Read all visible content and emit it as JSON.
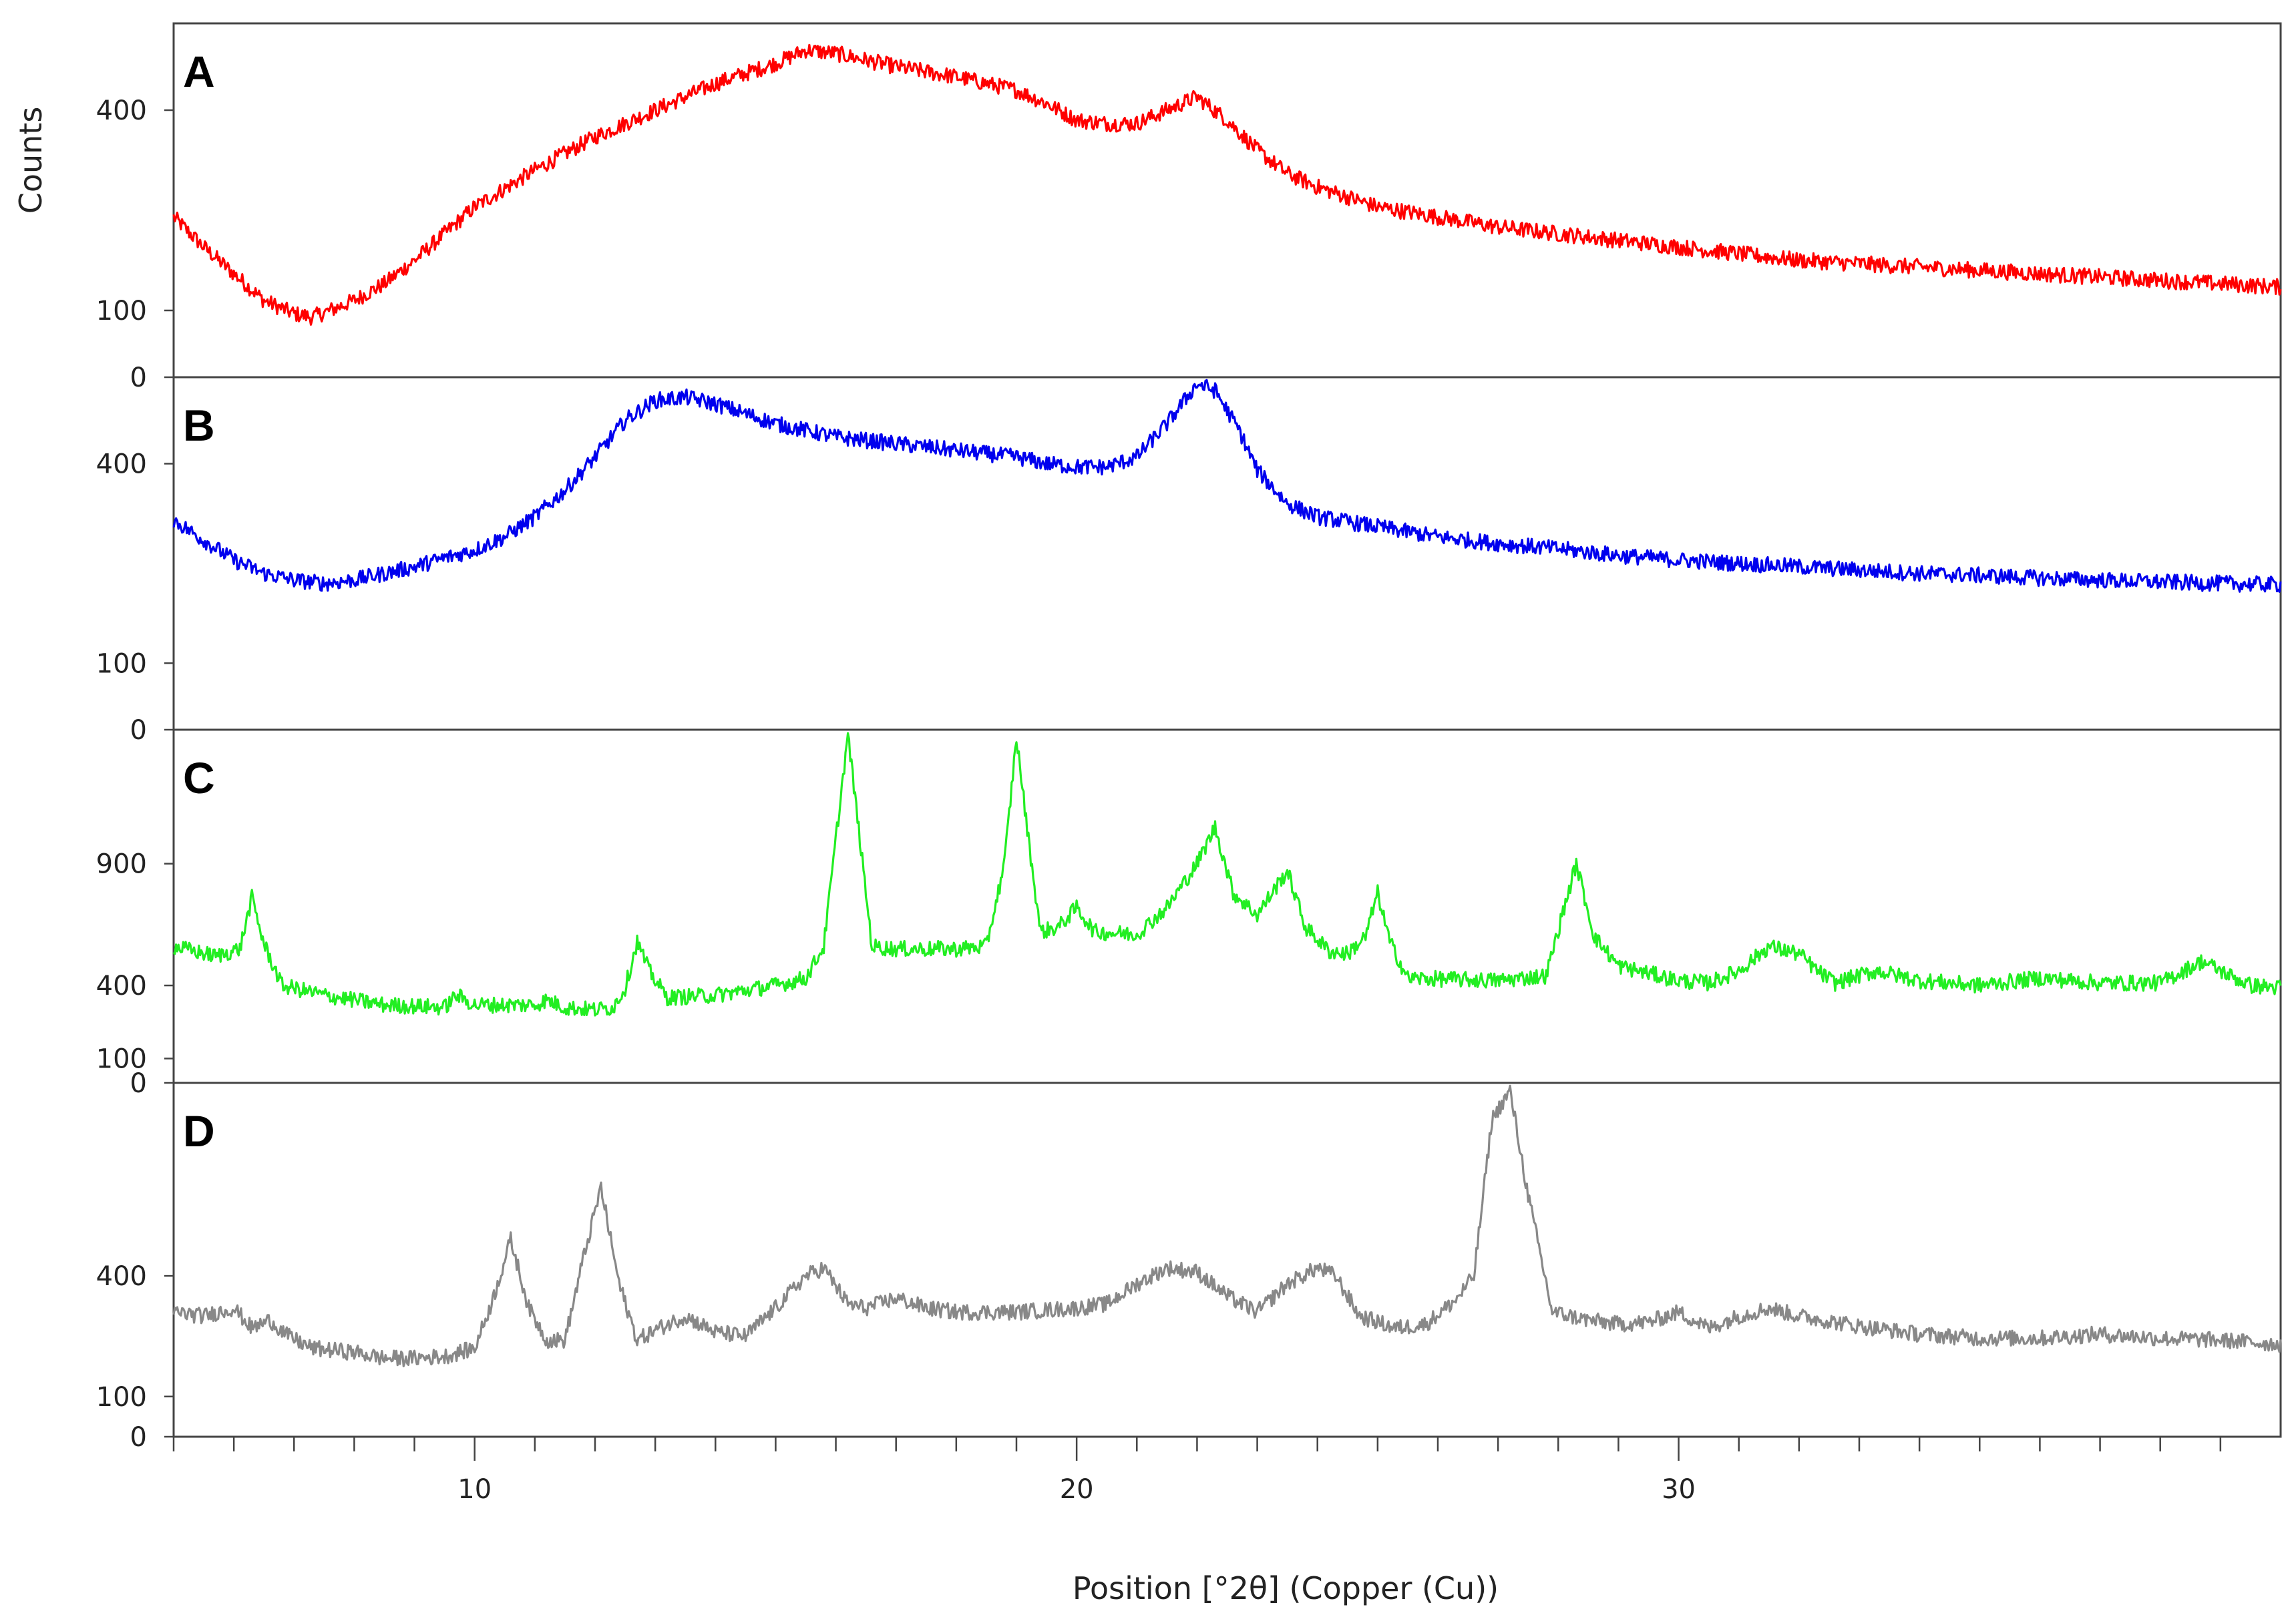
{
  "chart_data": {
    "type": "line",
    "xlabel": "Position [°2θ] (Copper (Cu))",
    "ylabel": "Counts",
    "xlim": [
      5,
      40
    ],
    "x_ticks": [
      10,
      20,
      30
    ],
    "panels": [
      {
        "label": "A",
        "color": "#ff0000",
        "y_ticks": [
          0,
          100,
          400
        ],
        "ylim": [
          0,
          530
        ],
        "points": [
          [
            5,
            240
          ],
          [
            5.5,
            195
          ],
          [
            6,
            155
          ],
          [
            6.5,
            115
          ],
          [
            7,
            95
          ],
          [
            7.3,
            90
          ],
          [
            7.6,
            100
          ],
          [
            8,
            115
          ],
          [
            8.5,
            140
          ],
          [
            9,
            175
          ],
          [
            9.5,
            215
          ],
          [
            10,
            255
          ],
          [
            11,
            310
          ],
          [
            12,
            360
          ],
          [
            13,
            400
          ],
          [
            14,
            440
          ],
          [
            15,
            470
          ],
          [
            15.5,
            490
          ],
          [
            16,
            485
          ],
          [
            16.5,
            475
          ],
          [
            17,
            465
          ],
          [
            18,
            450
          ],
          [
            19,
            430
          ],
          [
            19.5,
            410
          ],
          [
            20,
            385
          ],
          [
            20.5,
            380
          ],
          [
            21,
            380
          ],
          [
            21.5,
            400
          ],
          [
            22,
            420
          ],
          [
            22.5,
            385
          ],
          [
            23,
            340
          ],
          [
            23.5,
            305
          ],
          [
            24,
            285
          ],
          [
            24.5,
            270
          ],
          [
            25,
            255
          ],
          [
            26,
            240
          ],
          [
            27,
            225
          ],
          [
            28,
            215
          ],
          [
            29,
            205
          ],
          [
            30,
            195
          ],
          [
            31,
            185
          ],
          [
            32,
            175
          ],
          [
            33,
            170
          ],
          [
            34,
            165
          ],
          [
            35,
            160
          ],
          [
            36,
            155
          ],
          [
            37,
            150
          ],
          [
            38,
            145
          ],
          [
            39,
            140
          ],
          [
            40,
            135
          ]
        ]
      },
      {
        "label": "B",
        "color": "#0000ee",
        "y_ticks": [
          0,
          100,
          400
        ],
        "ylim": [
          0,
          530
        ],
        "points": [
          [
            5,
            315
          ],
          [
            5.5,
            285
          ],
          [
            6,
            255
          ],
          [
            6.5,
            235
          ],
          [
            7,
            225
          ],
          [
            7.5,
            220
          ],
          [
            8,
            225
          ],
          [
            8.5,
            235
          ],
          [
            9,
            245
          ],
          [
            9.5,
            258
          ],
          [
            10,
            270
          ],
          [
            10.5,
            290
          ],
          [
            11,
            320
          ],
          [
            11.5,
            360
          ],
          [
            12,
            410
          ],
          [
            12.5,
            465
          ],
          [
            13,
            495
          ],
          [
            13.5,
            500
          ],
          [
            14,
            490
          ],
          [
            14.5,
            475
          ],
          [
            15,
            460
          ],
          [
            15.5,
            450
          ],
          [
            16,
            440
          ],
          [
            16.5,
            435
          ],
          [
            17,
            430
          ],
          [
            18,
            420
          ],
          [
            19,
            410
          ],
          [
            19.5,
            400
          ],
          [
            20,
            395
          ],
          [
            20.5,
            395
          ],
          [
            21,
            410
          ],
          [
            21.5,
            460
          ],
          [
            22,
            520
          ],
          [
            22.3,
            510
          ],
          [
            22.7,
            450
          ],
          [
            23,
            390
          ],
          [
            23.5,
            340
          ],
          [
            24,
            320
          ],
          [
            25,
            305
          ],
          [
            26,
            290
          ],
          [
            27,
            280
          ],
          [
            28,
            272
          ],
          [
            29,
            262
          ],
          [
            30,
            255
          ],
          [
            31,
            250
          ],
          [
            32,
            245
          ],
          [
            33,
            240
          ],
          [
            34,
            235
          ],
          [
            35,
            232
          ],
          [
            36,
            228
          ],
          [
            37,
            225
          ],
          [
            38,
            222
          ],
          [
            39,
            220
          ],
          [
            40,
            218
          ]
        ]
      },
      {
        "label": "C",
        "color": "#22ee22",
        "y_ticks": [
          0,
          100,
          400,
          900
        ],
        "ylim": [
          0,
          1450
        ],
        "points": [
          [
            5,
            560
          ],
          [
            5.7,
            520
          ],
          [
            6.1,
            550
          ],
          [
            6.3,
            760
          ],
          [
            6.5,
            570
          ],
          [
            6.8,
            400
          ],
          [
            7.5,
            360
          ],
          [
            8.5,
            320
          ],
          [
            9.5,
            310
          ],
          [
            9.7,
            360
          ],
          [
            10,
            320
          ],
          [
            11,
            320
          ],
          [
            11.2,
            340
          ],
          [
            11.5,
            310
          ],
          [
            12,
            300
          ],
          [
            12.3,
            310
          ],
          [
            12.5,
            390
          ],
          [
            12.7,
            580
          ],
          [
            12.9,
            460
          ],
          [
            13.2,
            350
          ],
          [
            14,
            360
          ],
          [
            15,
            400
          ],
          [
            15.5,
            430
          ],
          [
            15.8,
            560
          ],
          [
            16,
            1000
          ],
          [
            16.2,
            1430
          ],
          [
            16.4,
            1000
          ],
          [
            16.6,
            560
          ],
          [
            17,
            550
          ],
          [
            18,
            550
          ],
          [
            18.5,
            560
          ],
          [
            18.8,
            900
          ],
          [
            19,
            1420
          ],
          [
            19.2,
            1000
          ],
          [
            19.4,
            620
          ],
          [
            19.7,
            640
          ],
          [
            20,
            720
          ],
          [
            20.3,
            620
          ],
          [
            21,
            610
          ],
          [
            21.5,
            720
          ],
          [
            22,
            900
          ],
          [
            22.3,
            1050
          ],
          [
            22.6,
            780
          ],
          [
            23,
            690
          ],
          [
            23.3,
            800
          ],
          [
            23.5,
            870
          ],
          [
            23.8,
            640
          ],
          [
            24.2,
            540
          ],
          [
            24.5,
            530
          ],
          [
            24.8,
            600
          ],
          [
            25,
            780
          ],
          [
            25.2,
            580
          ],
          [
            25.5,
            430
          ],
          [
            27,
            420
          ],
          [
            27.8,
            440
          ],
          [
            28.1,
            720
          ],
          [
            28.3,
            900
          ],
          [
            28.6,
            600
          ],
          [
            29,
            480
          ],
          [
            30,
            420
          ],
          [
            30.5,
            410
          ],
          [
            31,
            460
          ],
          [
            31.5,
            560
          ],
          [
            32,
            530
          ],
          [
            32.3,
            460
          ],
          [
            32.6,
            410
          ],
          [
            33,
            440
          ],
          [
            33.3,
            460
          ],
          [
            34,
            420
          ],
          [
            35,
            400
          ],
          [
            36,
            430
          ],
          [
            37,
            410
          ],
          [
            38,
            410
          ],
          [
            38.7,
            500
          ],
          [
            39,
            460
          ],
          [
            39.5,
            400
          ],
          [
            40,
            390
          ]
        ]
      },
      {
        "label": "D",
        "color": "#888888",
        "y_ticks": [
          0,
          100,
          400
        ],
        "ylim": [
          0,
          880
        ],
        "points": [
          [
            5,
            310
          ],
          [
            5.5,
            300
          ],
          [
            6,
            320
          ],
          [
            6.3,
            270
          ],
          [
            6.6,
            290
          ],
          [
            6.9,
            250
          ],
          [
            7.3,
            220
          ],
          [
            8,
            210
          ],
          [
            8.5,
            195
          ],
          [
            9,
            195
          ],
          [
            9.5,
            200
          ],
          [
            10,
            220
          ],
          [
            10.3,
            340
          ],
          [
            10.6,
            490
          ],
          [
            10.9,
            320
          ],
          [
            11.2,
            240
          ],
          [
            11.5,
            240
          ],
          [
            11.8,
            440
          ],
          [
            12.1,
            620
          ],
          [
            12.4,
            380
          ],
          [
            12.7,
            240
          ],
          [
            13,
            265
          ],
          [
            13.5,
            300
          ],
          [
            14,
            260
          ],
          [
            14.5,
            250
          ],
          [
            15,
            320
          ],
          [
            15.5,
            400
          ],
          [
            15.8,
            420
          ],
          [
            16.2,
            330
          ],
          [
            16.5,
            320
          ],
          [
            17,
            345
          ],
          [
            17.5,
            320
          ],
          [
            18,
            310
          ],
          [
            19,
            310
          ],
          [
            20,
            320
          ],
          [
            20.5,
            330
          ],
          [
            21,
            380
          ],
          [
            21.5,
            420
          ],
          [
            22,
            410
          ],
          [
            22.5,
            350
          ],
          [
            23,
            310
          ],
          [
            23.5,
            380
          ],
          [
            24,
            420
          ],
          [
            24.3,
            400
          ],
          [
            24.7,
            300
          ],
          [
            25.3,
            270
          ],
          [
            25.8,
            280
          ],
          [
            26.3,
            340
          ],
          [
            26.6,
            400
          ],
          [
            26.9,
            790
          ],
          [
            27.2,
            860
          ],
          [
            27.5,
            600
          ],
          [
            27.9,
            310
          ],
          [
            28.5,
            290
          ],
          [
            29,
            280
          ],
          [
            29.5,
            285
          ],
          [
            30,
            310
          ],
          [
            30.5,
            270
          ],
          [
            31,
            300
          ],
          [
            31.5,
            320
          ],
          [
            32,
            300
          ],
          [
            33,
            275
          ],
          [
            34,
            255
          ],
          [
            35,
            245
          ],
          [
            36,
            245
          ],
          [
            37,
            255
          ],
          [
            38,
            245
          ],
          [
            39,
            240
          ],
          [
            40,
            230
          ]
        ]
      }
    ]
  }
}
